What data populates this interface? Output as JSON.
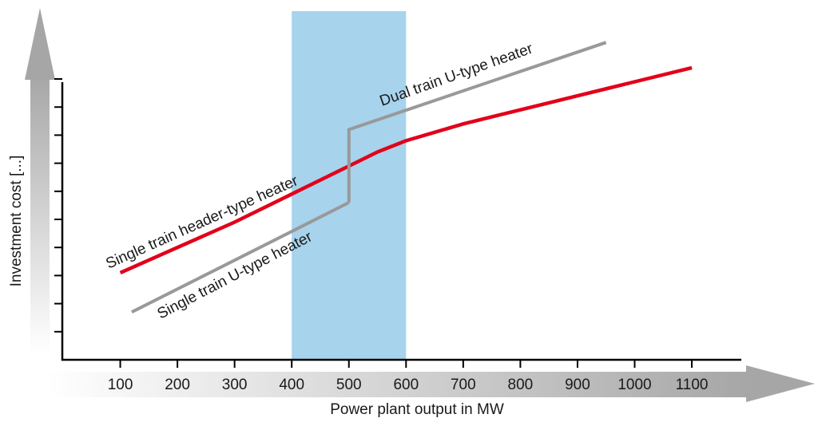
{
  "chart_data": {
    "type": "line",
    "xlabel": "Power plant output in MW",
    "ylabel": "Investment cost [...]",
    "x_ticks": [
      100,
      200,
      300,
      400,
      500,
      600,
      700,
      800,
      900,
      1000,
      1100
    ],
    "xlim": [
      0,
      1200
    ],
    "ylim": [
      0,
      10
    ],
    "y_tick_count": 10,
    "y_ticks_labeled": false,
    "grid": false,
    "highlight_band": {
      "x": [
        400,
        600
      ],
      "color": "#a7d3ec"
    },
    "series": [
      {
        "name": "Single train header-type heater",
        "color": "#e2001a",
        "x": [
          100,
          200,
          300,
          400,
          500,
          550,
          600,
          700,
          800,
          900,
          1000,
          1100
        ],
        "y": [
          3.1,
          4.0,
          4.9,
          5.9,
          6.9,
          7.4,
          7.8,
          8.4,
          8.9,
          9.4,
          9.9,
          10.4
        ]
      },
      {
        "name": "Single train U-type heater",
        "color": "#999999",
        "x": [
          120,
          500
        ],
        "y": [
          1.7,
          5.6
        ]
      },
      {
        "name": "Dual train U-type heater",
        "color": "#999999",
        "x": [
          500,
          500,
          950
        ],
        "y": [
          5.6,
          8.2,
          11.3
        ]
      }
    ]
  }
}
